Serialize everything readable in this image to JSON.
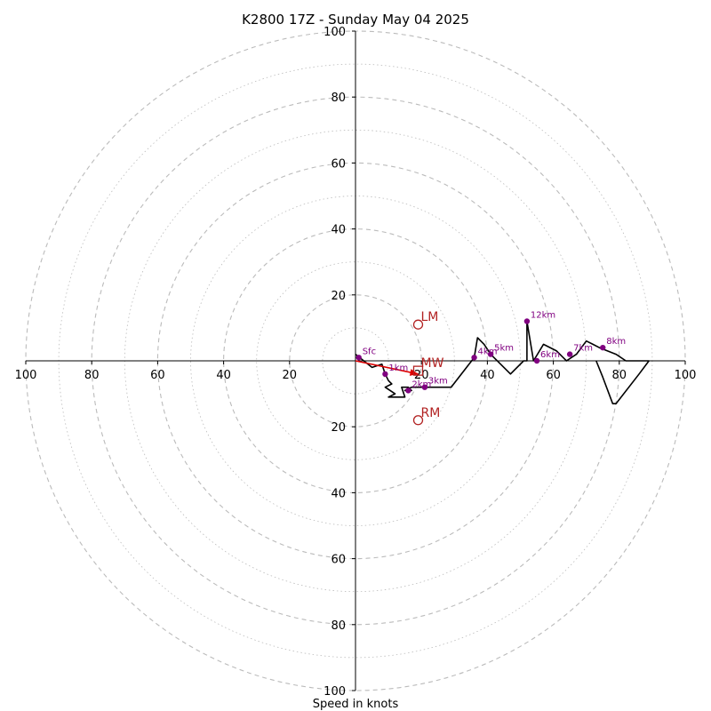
{
  "chart_data": {
    "type": "scatter",
    "subtype": "hodograph",
    "title": "K2800 17Z - Sunday May 04 2025",
    "xlabel": "Speed in knots",
    "xlim": [
      -100,
      100
    ],
    "ylim": [
      -100,
      100
    ],
    "tick_labels": [
      "20",
      "40",
      "60",
      "80",
      "100"
    ],
    "grid": true,
    "colors": {
      "trace": "#000000",
      "height_marker": "#800080",
      "storm_motion": "#b22222",
      "shear_vector": "#dd0000",
      "grid": "#bbbbbb",
      "axis": "#000000"
    },
    "trace": {
      "u": [
        0,
        5,
        8,
        9,
        10,
        11,
        9,
        12,
        10,
        14,
        15,
        14,
        16,
        17,
        15,
        17,
        21,
        29,
        36,
        37,
        39,
        41,
        42,
        47,
        51,
        52,
        52,
        54,
        57,
        61,
        64,
        67,
        70,
        72,
        74,
        79,
        82,
        87,
        89,
        86,
        79,
        78,
        75,
        73
      ],
      "v": [
        2,
        -2,
        -1,
        -4,
        -6,
        -7,
        -8,
        -10,
        -11,
        -11,
        -11,
        -8,
        -8,
        -9,
        -9,
        -8,
        -8,
        -8,
        1,
        7,
        5,
        2,
        1,
        -4,
        0,
        0,
        12,
        0,
        5,
        3,
        0,
        2,
        6,
        5,
        4,
        2,
        0,
        0,
        0,
        -4,
        -13,
        -13,
        -5,
        0
      ]
    },
    "height_markers": [
      {
        "label": "Sfc",
        "u": 1,
        "v": 1
      },
      {
        "label": "1km",
        "u": 9,
        "v": -4
      },
      {
        "label": "2km",
        "u": 16,
        "v": -9
      },
      {
        "label": "3km",
        "u": 21,
        "v": -8
      },
      {
        "label": "4km",
        "u": 36,
        "v": 1
      },
      {
        "label": "5km",
        "u": 41,
        "v": 2
      },
      {
        "label": "6km",
        "u": 55,
        "v": 0
      },
      {
        "label": "7km",
        "u": 65,
        "v": 2
      },
      {
        "label": "8km",
        "u": 75,
        "v": 4
      },
      {
        "label": "12km",
        "u": 52,
        "v": 12
      }
    ],
    "storm_motions": [
      {
        "label": "LM",
        "u": 19,
        "v": 11
      },
      {
        "label": "MW",
        "u": 19,
        "v": -3
      },
      {
        "label": "RM",
        "u": 19,
        "v": -18
      }
    ],
    "shear_vector": {
      "from": [
        0,
        0
      ],
      "to": [
        19,
        -4
      ]
    }
  }
}
